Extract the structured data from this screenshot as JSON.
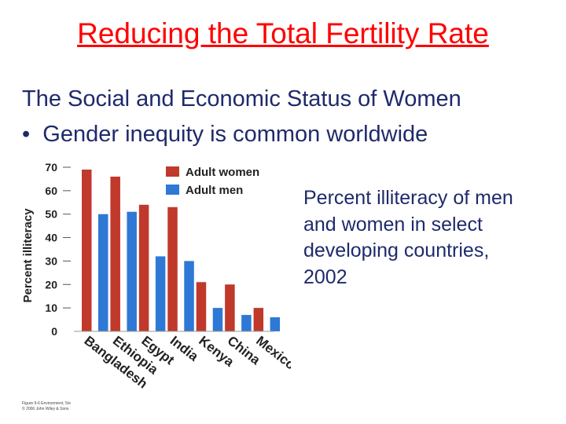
{
  "slide": {
    "title": "Reducing the Total Fertility Rate",
    "subtitle": "The Social and Economic Status of Women",
    "bullet": "Gender inequity is common worldwide",
    "caption": "Percent illiteracy of men and women in select developing countries, 2002",
    "credit_line1": "Figure 9-6 Environment, 5/e",
    "credit_line2": "© 2006 John Wiley & Sons"
  },
  "chart_data": {
    "type": "bar",
    "categories": [
      "Bangladesh",
      "Ethiopia",
      "Egypt",
      "India",
      "Kenya",
      "China",
      "Mexico"
    ],
    "series": [
      {
        "name": "Adult women",
        "color": "#c0392b",
        "values": [
          69,
          66,
          54,
          53,
          21,
          20,
          10
        ]
      },
      {
        "name": "Adult men",
        "color": "#2e78d6",
        "values": [
          50,
          51,
          32,
          30,
          10,
          7,
          6
        ]
      }
    ],
    "ylabel": "Percent illiteracy",
    "ylim": [
      0,
      70
    ],
    "yticks": [
      0,
      10,
      20,
      30,
      40,
      50,
      60,
      70
    ],
    "legend": "top-right"
  }
}
